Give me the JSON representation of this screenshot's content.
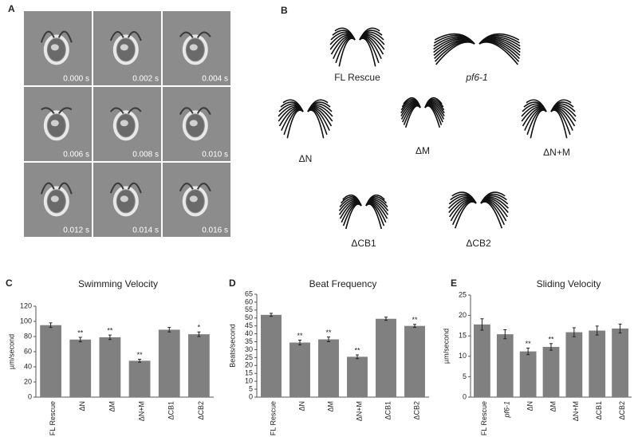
{
  "panel_a": {
    "label": "A",
    "timestamps": [
      "0.000 s",
      "0.002 s",
      "0.004 s",
      "0.006 s",
      "0.008 s",
      "0.010 s",
      "0.012 s",
      "0.014 s",
      "0.016 s"
    ]
  },
  "panel_b": {
    "label": "B",
    "labels": [
      "FL Rescue",
      "pf6-1",
      "ΔN",
      "ΔM",
      "ΔN+M",
      "ΔCB1",
      "ΔCB2"
    ],
    "italic_labels": [
      1
    ]
  },
  "chart_data": [
    {
      "type": "bar",
      "panel": "C",
      "title": "Swimming Velocity",
      "y_label": "µm/second",
      "color": "#808080",
      "categories": [
        "FL Rescue",
        "ΔN",
        "ΔM",
        "ΔN+M",
        "ΔCB1",
        "ΔCB2"
      ],
      "values": [
        95,
        76,
        79,
        48,
        89,
        83
      ],
      "errors": [
        3,
        3,
        3,
        2,
        3,
        3
      ],
      "annotations": [
        null,
        "**",
        "**",
        "**",
        null,
        "*"
      ],
      "ylim": [
        0,
        120
      ],
      "yticks": [
        0,
        20,
        40,
        60,
        80,
        100,
        120
      ]
    },
    {
      "type": "bar",
      "panel": "D",
      "title": "Beat Frequency",
      "y_label": "Beats/second",
      "color": "#808080",
      "categories": [
        "FL Rescue",
        "ΔN",
        "ΔM",
        "ΔN+M",
        "ΔCB1",
        "ΔCB2"
      ],
      "values": [
        52,
        34.5,
        36.5,
        25.5,
        49.5,
        45
      ],
      "errors": [
        1,
        1.5,
        1.5,
        1.2,
        1,
        1
      ],
      "annotations": [
        null,
        "**",
        "**",
        "**",
        null,
        "**"
      ],
      "ylim": [
        0,
        65
      ],
      "yticks": [
        0,
        5,
        10,
        15,
        20,
        25,
        30,
        35,
        40,
        45,
        50,
        55,
        60,
        65
      ]
    },
    {
      "type": "bar",
      "panel": "E",
      "title": "Sliding Velocity",
      "y_label": "µm/second",
      "color": "#808080",
      "categories": [
        "FL Rescue",
        "pf6-1",
        "ΔN",
        "ΔM",
        "ΔN+M",
        "ΔCB1",
        "ΔCB2"
      ],
      "italic_categories": [
        1
      ],
      "values": [
        17.8,
        15.4,
        11.2,
        12.3,
        15.9,
        16.3,
        16.8
      ],
      "errors": [
        1.4,
        1.1,
        0.8,
        0.8,
        1.1,
        1.1,
        1.1
      ],
      "annotations": [
        null,
        null,
        "**",
        "**",
        null,
        null,
        null
      ],
      "ylim": [
        0,
        25
      ],
      "yticks": [
        0,
        5,
        10,
        15,
        20,
        25
      ]
    }
  ]
}
